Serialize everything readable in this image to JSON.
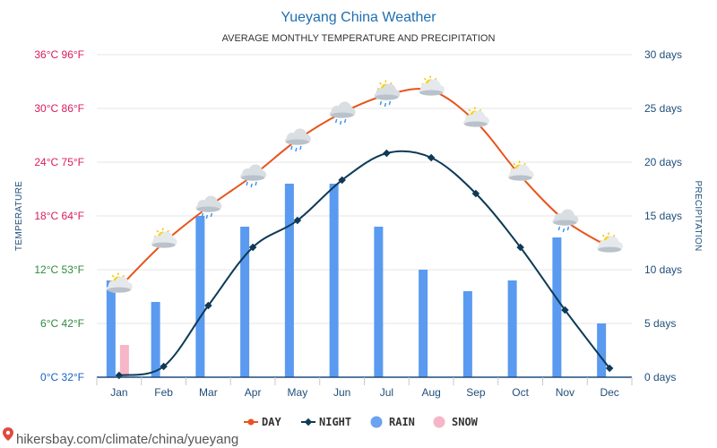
{
  "header": {
    "title": "Yueyang China Weather",
    "subtitle": "AVERAGE MONTHLY TEMPERATURE AND PRECIPITATION"
  },
  "footer": {
    "url": "hikersbay.com/climate/china/yueyang"
  },
  "legend": [
    {
      "label": "DAY",
      "color": "#e8541c",
      "marker": "line-circle"
    },
    {
      "label": "NIGHT",
      "color": "#0e3a57",
      "marker": "line-diamond"
    },
    {
      "label": "RAIN",
      "color": "#6aa3ef",
      "marker": "circle"
    },
    {
      "label": "SNOW",
      "color": "#f7b6c8",
      "marker": "circle"
    }
  ],
  "chart_data": {
    "type": "bar",
    "title": "Yueyang China Weather",
    "subtitle": "AVERAGE MONTHLY TEMPERATURE AND PRECIPITATION",
    "categories": [
      "Jan",
      "Feb",
      "Mar",
      "Apr",
      "May",
      "Jun",
      "Jul",
      "Aug",
      "Sep",
      "Oct",
      "Nov",
      "Dec"
    ],
    "y_left": {
      "label": "TEMPERATURE",
      "ylim": [
        0,
        36
      ],
      "ticks": [
        {
          "value": 0,
          "label": "0°C 32°F",
          "color": "#1565c0"
        },
        {
          "value": 6,
          "label": "6°C 42°F",
          "color": "#2e8b3a"
        },
        {
          "value": 12,
          "label": "12°C 53°F",
          "color": "#2e8b3a"
        },
        {
          "value": 18,
          "label": "18°C 64°F",
          "color": "#d81b60"
        },
        {
          "value": 24,
          "label": "24°C 75°F",
          "color": "#d81b60"
        },
        {
          "value": 30,
          "label": "30°C 86°F",
          "color": "#d81b60"
        },
        {
          "value": 36,
          "label": "36°C 96°F",
          "color": "#d81b60"
        }
      ]
    },
    "y_right": {
      "label": "PRECIPITATION",
      "ylim": [
        0,
        30
      ],
      "ticks": [
        {
          "value": 0,
          "label": "0 days"
        },
        {
          "value": 5,
          "label": "5 days"
        },
        {
          "value": 10,
          "label": "10 days"
        },
        {
          "value": 15,
          "label": "15 days"
        },
        {
          "value": 20,
          "label": "20 days"
        },
        {
          "value": 25,
          "label": "25 days"
        },
        {
          "value": 30,
          "label": "30 days"
        }
      ]
    },
    "series": [
      {
        "name": "DAY",
        "kind": "line",
        "axis": "left",
        "color": "#e8541c",
        "values": [
          10,
          15,
          19,
          22.5,
          26.5,
          29.5,
          31.5,
          32,
          28.5,
          22.5,
          17.5,
          14.5
        ]
      },
      {
        "name": "NIGHT",
        "kind": "line",
        "axis": "left",
        "color": "#0e3a57",
        "values": [
          0.2,
          1.2,
          8,
          14.5,
          17.5,
          22,
          25,
          24.5,
          20.5,
          14.5,
          7.5,
          1
        ]
      },
      {
        "name": "RAIN",
        "kind": "bar",
        "axis": "right",
        "color": "#5a9af0",
        "values": [
          9,
          7,
          15,
          14,
          18,
          18,
          14,
          10,
          8,
          9,
          13,
          5
        ]
      },
      {
        "name": "SNOW",
        "kind": "bar",
        "axis": "right",
        "color": "#f7b6c8",
        "values": [
          3,
          0,
          0,
          0,
          0,
          0,
          0,
          0,
          0,
          0,
          0,
          0
        ]
      }
    ],
    "weather_icons": [
      "sun-cloud",
      "sun-cloud",
      "cloud-rain",
      "cloud-rain",
      "cloud-rain",
      "cloud-rain",
      "sun-cloud-rain",
      "sun-cloud",
      "sun-cloud",
      "sun-cloud",
      "cloud-rain",
      "sun-cloud"
    ],
    "grid": true,
    "legend_position": "bottom-center"
  }
}
